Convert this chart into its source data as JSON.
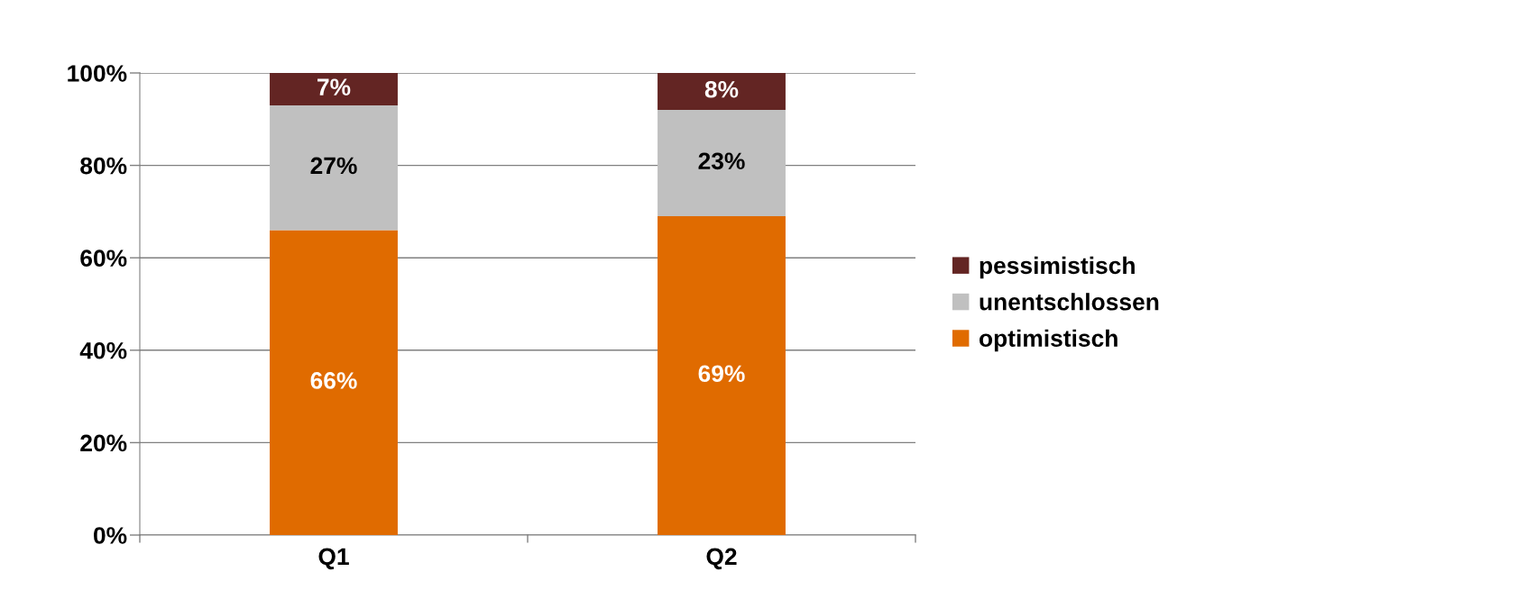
{
  "chart_data": {
    "type": "bar",
    "stacked": true,
    "categories": [
      "Q1",
      "Q2"
    ],
    "series": [
      {
        "name": "optimistisch",
        "color": "#e06b00",
        "values": [
          66,
          69
        ],
        "value_labels": [
          "66%",
          "69%"
        ]
      },
      {
        "name": "unentschlossen",
        "color": "#c0c0c0",
        "values": [
          27,
          23
        ],
        "value_labels": [
          "27%",
          "23%"
        ]
      },
      {
        "name": "pessimistisch",
        "color": "#632523",
        "values": [
          7,
          8
        ],
        "value_labels": [
          "7%",
          "8%"
        ]
      }
    ],
    "ylim": [
      0,
      100
    ],
    "yticks": [
      {
        "value": 0,
        "label": "0%"
      },
      {
        "value": 20,
        "label": "20%"
      },
      {
        "value": 40,
        "label": "40%"
      },
      {
        "value": 60,
        "label": "60%"
      },
      {
        "value": 80,
        "label": "80%"
      },
      {
        "value": 100,
        "label": "100%"
      }
    ],
    "grid": "y",
    "legend": "right"
  }
}
